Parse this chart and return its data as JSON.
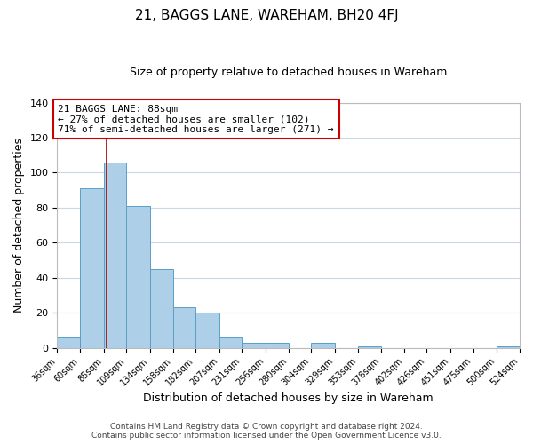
{
  "title": "21, BAGGS LANE, WAREHAM, BH20 4FJ",
  "subtitle": "Size of property relative to detached houses in Wareham",
  "xlabel": "Distribution of detached houses by size in Wareham",
  "ylabel": "Number of detached properties",
  "bin_edges": [
    36,
    60,
    85,
    109,
    134,
    158,
    182,
    207,
    231,
    256,
    280,
    304,
    329,
    353,
    378,
    402,
    426,
    451,
    475,
    500,
    524
  ],
  "bar_heights": [
    6,
    91,
    106,
    81,
    45,
    23,
    20,
    6,
    3,
    3,
    0,
    3,
    0,
    1,
    0,
    0,
    0,
    0,
    0,
    1
  ],
  "bar_color": "#aecfe8",
  "bar_edge_color": "#5a9fc8",
  "property_line_x": 88,
  "property_line_color": "#aa0000",
  "annotation_title": "21 BAGGS LANE: 88sqm",
  "annotation_line1": "← 27% of detached houses are smaller (102)",
  "annotation_line2": "71% of semi-detached houses are larger (271) →",
  "annotation_box_color": "#ffffff",
  "annotation_box_edge": "#cc0000",
  "ylim": [
    0,
    140
  ],
  "yticks": [
    0,
    20,
    40,
    60,
    80,
    100,
    120,
    140
  ],
  "footer_line1": "Contains HM Land Registry data © Crown copyright and database right 2024.",
  "footer_line2": "Contains public sector information licensed under the Open Government Licence v3.0.",
  "bg_color": "#ffffff",
  "grid_color": "#c8d8e8",
  "title_fontsize": 11,
  "subtitle_fontsize": 9,
  "ylabel_fontsize": 9,
  "xlabel_fontsize": 9,
  "tick_fontsize": 7,
  "annotation_fontsize": 8,
  "footer_fontsize": 6.5
}
